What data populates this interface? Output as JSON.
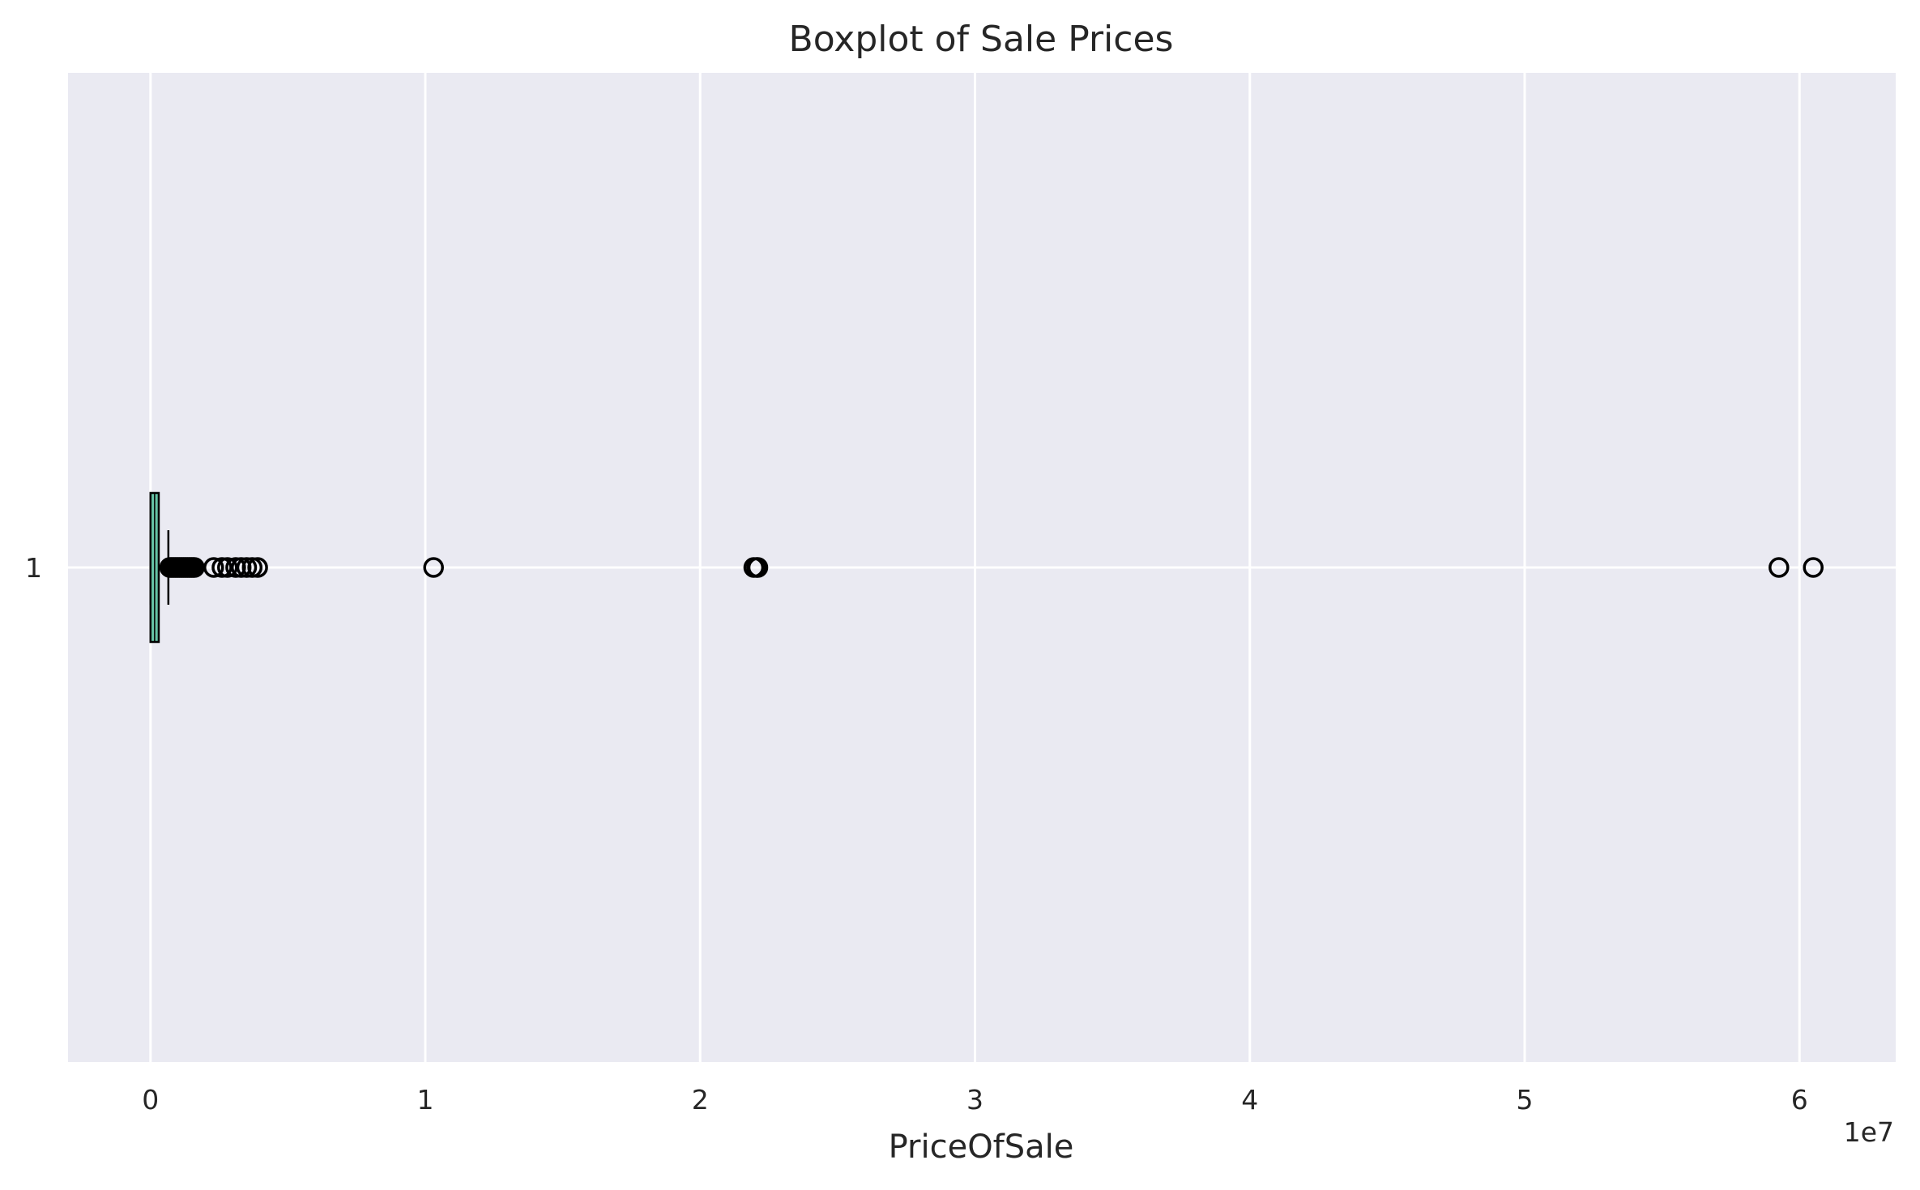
{
  "chart_data": {
    "type": "boxplot",
    "orientation": "horizontal",
    "title": "Boxplot of Sale Prices",
    "xlabel": "PriceOfSale",
    "ylabel": "",
    "offset_text": "1e7",
    "x_scale_factor": 10000000,
    "xlim": [
      -3000000,
      63500000
    ],
    "x_ticks": [
      0,
      1,
      2,
      3,
      4,
      5,
      6
    ],
    "x_tick_labels": [
      "0",
      "1",
      "2",
      "3",
      "4",
      "5",
      "6"
    ],
    "y_tick_labels": [
      "1"
    ],
    "grid": true,
    "colors": {
      "plot_background": "#eaeaf2",
      "grid": "#ffffff",
      "box_fill": "#66c2a5",
      "box_edge": "#000000",
      "flier_edge": "#000000"
    },
    "boxes": [
      {
        "label": "1",
        "whisker_low": 0,
        "q1": 0,
        "median": 150000,
        "q3": 300000,
        "whisker_high": 650000,
        "fliers": [
          700000,
          750000,
          800000,
          850000,
          900000,
          950000,
          1000000,
          1050000,
          1100000,
          1150000,
          1200000,
          1250000,
          1300000,
          1350000,
          1400000,
          1450000,
          1500000,
          1550000,
          1600000,
          2300000,
          2600000,
          2800000,
          3100000,
          3300000,
          3500000,
          3700000,
          3900000,
          10300000,
          21950000,
          22050000,
          22100000,
          59250000,
          60500000
        ]
      }
    ]
  }
}
